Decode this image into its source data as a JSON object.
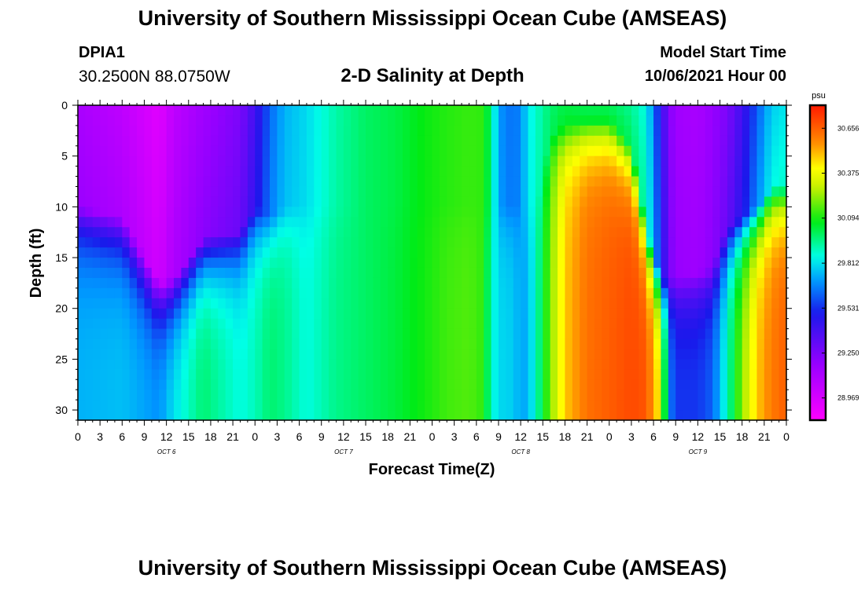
{
  "header": {
    "title": "University of Southern Mississippi Ocean Cube (AMSEAS)",
    "station": "DPIA1",
    "coordinates": "30.2500N  88.0750W",
    "model_start_label": "Model Start Time",
    "model_start_value": "10/06/2021 Hour 00"
  },
  "footer": {
    "title": "University of Southern Mississippi Ocean Cube (AMSEAS)"
  },
  "chart_data": {
    "type": "heatmap",
    "title": "2-D Salinity at Depth",
    "xlabel": "Forecast Time(Z)",
    "ylabel": "Depth (ft)",
    "x_ticks": [
      "0",
      "3",
      "6",
      "9",
      "12",
      "15",
      "18",
      "21",
      "0",
      "3",
      "6",
      "9",
      "12",
      "15",
      "18",
      "21",
      "0",
      "3",
      "6",
      "9",
      "12",
      "15",
      "18",
      "21",
      "0",
      "3",
      "6",
      "9",
      "12",
      "15",
      "18",
      "21",
      "0"
    ],
    "day_labels": [
      {
        "label": "OCT 6",
        "hour": 12
      },
      {
        "label": "OCT 7",
        "hour": 36
      },
      {
        "label": "OCT 8",
        "hour": 60
      },
      {
        "label": "OCT 9",
        "hour": 84
      }
    ],
    "x_range_hours": [
      0,
      96
    ],
    "y_ticks": [
      0,
      5,
      10,
      15,
      20,
      25,
      30
    ],
    "y_range_ft": [
      0,
      31
    ],
    "colorbar": {
      "unit": "psu",
      "min": 28.83,
      "max": 30.8,
      "tick_labels": [
        "30.656",
        "30.375",
        "30.094",
        "29.812",
        "29.531",
        "29.250",
        "28.969"
      ]
    },
    "profile_nodes": [
      {
        "hour": 0,
        "surface": 29.12,
        "bottom": 29.74,
        "mld": 10
      },
      {
        "hour": 6,
        "surface": 29.05,
        "bottom": 29.76,
        "mld": 11
      },
      {
        "hour": 11,
        "surface": 28.93,
        "bottom": 29.7,
        "mld": 17.5
      },
      {
        "hour": 13,
        "surface": 29.05,
        "bottom": 29.82,
        "mld": 17
      },
      {
        "hour": 17,
        "surface": 29.15,
        "bottom": 29.98,
        "mld": 13
      },
      {
        "hour": 22,
        "surface": 29.25,
        "bottom": 29.86,
        "mld": 12.5
      },
      {
        "hour": 24,
        "surface": 29.4,
        "bottom": 29.9,
        "mld": 10
      },
      {
        "hour": 26,
        "surface": 29.62,
        "bottom": 29.98,
        "mld": 11
      },
      {
        "hour": 28,
        "surface": 29.74,
        "bottom": 29.95,
        "mld": 10
      },
      {
        "hour": 31,
        "surface": 29.8,
        "bottom": 29.86,
        "mld": 10
      },
      {
        "hour": 35,
        "surface": 29.92,
        "bottom": 29.95,
        "mld": 10
      },
      {
        "hour": 39,
        "surface": 29.99,
        "bottom": 29.99,
        "mld": 10
      },
      {
        "hour": 43,
        "surface": 30.02,
        "bottom": 30.03,
        "mld": 10
      },
      {
        "hour": 47,
        "surface": 30.08,
        "bottom": 30.09,
        "mld": 10
      },
      {
        "hour": 50,
        "surface": 30.11,
        "bottom": 30.14,
        "mld": 10
      },
      {
        "hour": 53,
        "surface": 30.13,
        "bottom": 30.16,
        "mld": 10
      },
      {
        "hour": 55,
        "surface": 30.12,
        "bottom": 30.12,
        "mld": 10
      },
      {
        "hour": 56,
        "surface": 29.95,
        "bottom": 29.88,
        "mld": 10
      },
      {
        "hour": 57,
        "surface": 29.7,
        "bottom": 29.8,
        "mld": 10
      },
      {
        "hour": 59,
        "surface": 29.63,
        "bottom": 29.78,
        "mld": 10
      },
      {
        "hour": 60,
        "surface": 29.68,
        "bottom": 29.72,
        "mld": 10
      },
      {
        "hour": 61,
        "surface": 29.82,
        "bottom": 29.74,
        "mld": 10
      },
      {
        "hour": 62,
        "surface": 29.88,
        "bottom": 29.88,
        "mld": 10
      },
      {
        "hour": 64,
        "surface": 29.98,
        "bottom": 30.2,
        "mld": 3
      },
      {
        "hour": 66,
        "surface": 30.02,
        "bottom": 30.48,
        "mld": 2
      },
      {
        "hour": 69,
        "surface": 30.0,
        "bottom": 30.62,
        "mld": 1.5
      },
      {
        "hour": 72,
        "surface": 30.0,
        "bottom": 30.66,
        "mld": 1.5
      },
      {
        "hour": 75,
        "surface": 29.94,
        "bottom": 30.7,
        "mld": 4
      },
      {
        "hour": 77,
        "surface": 29.85,
        "bottom": 30.68,
        "mld": 12
      },
      {
        "hour": 79,
        "surface": 29.45,
        "bottom": 30.4,
        "mld": 17
      },
      {
        "hour": 80,
        "surface": 29.25,
        "bottom": 29.7,
        "mld": 17
      },
      {
        "hour": 81,
        "surface": 29.15,
        "bottom": 29.55,
        "mld": 17
      },
      {
        "hour": 84,
        "surface": 29.12,
        "bottom": 29.55,
        "mld": 16.5
      },
      {
        "hour": 86,
        "surface": 29.18,
        "bottom": 29.62,
        "mld": 16
      },
      {
        "hour": 88,
        "surface": 29.25,
        "bottom": 29.9,
        "mld": 12
      },
      {
        "hour": 90,
        "surface": 29.4,
        "bottom": 30.22,
        "mld": 11
      },
      {
        "hour": 92,
        "surface": 29.6,
        "bottom": 30.48,
        "mld": 10
      },
      {
        "hour": 94,
        "surface": 29.78,
        "bottom": 30.6,
        "mld": 8
      },
      {
        "hour": 96,
        "surface": 29.82,
        "bottom": 30.66,
        "mld": 8
      }
    ]
  }
}
